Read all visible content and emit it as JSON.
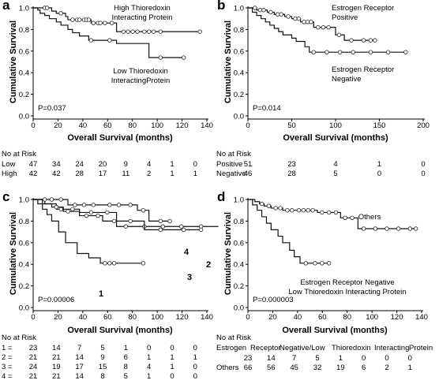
{
  "chart_data": [
    {
      "panel_label": "a",
      "type": "line",
      "xlabel": "Overall Survival (months)",
      "ylabel": "Cumulative Survival",
      "xlim": [
        0,
        150
      ],
      "ylim": [
        0.0,
        1.0
      ],
      "xticks": [
        "0",
        "20",
        "40",
        "60",
        "80",
        "100",
        "120",
        "140"
      ],
      "yticks": [
        "0.0",
        "0.2",
        "0.4",
        "0.6",
        "0.8",
        "1.0"
      ],
      "pvalue": "P=0.037",
      "annotations": [
        "High Thioredoxin Interacting Protein",
        "Low Thioredoxin InteractingProtein"
      ],
      "series": [
        {
          "group": "High",
          "x": [
            0,
            14,
            16,
            20,
            28,
            30,
            50,
            72,
            144
          ],
          "y": [
            1.0,
            1.0,
            0.97,
            0.95,
            0.92,
            0.89,
            0.86,
            0.78,
            0.78
          ],
          "censor_x": [
            10,
            12,
            24,
            34,
            38,
            40,
            44,
            46,
            48,
            52,
            56,
            58,
            62,
            68,
            78,
            82,
            86,
            90,
            96,
            100,
            104,
            110,
            144
          ]
        },
        {
          "group": "Low",
          "x": [
            0,
            4,
            6,
            10,
            14,
            20,
            24,
            30,
            34,
            40,
            48,
            72,
            100,
            130
          ],
          "y": [
            1.0,
            0.98,
            0.95,
            0.93,
            0.9,
            0.87,
            0.84,
            0.8,
            0.77,
            0.74,
            0.7,
            0.67,
            0.54,
            0.54
          ],
          "censor_x": [
            50,
            66,
            110,
            130
          ]
        }
      ],
      "risk": {
        "header": "No at Risk",
        "columns_x": [
          0,
          20,
          40,
          60,
          80,
          100,
          120,
          140
        ],
        "rows": [
          {
            "label": "Low",
            "values": [
              "47",
              "34",
              "24",
              "20",
              "9",
              "4",
              "1",
              "0"
            ]
          },
          {
            "label": "High",
            "values": [
              "42",
              "42",
              "28",
              "17",
              "11",
              "2",
              "1",
              "1"
            ]
          }
        ]
      }
    },
    {
      "panel_label": "b",
      "type": "line",
      "xlabel": "Overall Survival (months)",
      "ylabel": "Cumulative Survival",
      "xlim": [
        0,
        200
      ],
      "ylim": [
        0.0,
        1.0
      ],
      "xticks": [
        "0",
        "50",
        "100",
        "150",
        "200"
      ],
      "yticks": [
        "0.0",
        "0.2",
        "0.4",
        "0.6",
        "0.8",
        "1.0"
      ],
      "pvalue": "P=0.014",
      "annotations": [
        "Estrogen Receptor Positive",
        "Estrogen Receptor Negative"
      ],
      "series": [
        {
          "group": "Positive",
          "x": [
            0,
            10,
            22,
            30,
            42,
            50,
            60,
            75,
            100,
            110,
            125,
            145
          ],
          "y": [
            1.0,
            0.98,
            0.96,
            0.94,
            0.92,
            0.9,
            0.87,
            0.82,
            0.75,
            0.7,
            0.7,
            0.7
          ],
          "censor_x": [
            8,
            14,
            18,
            26,
            34,
            38,
            46,
            54,
            58,
            64,
            68,
            72,
            80,
            86,
            92,
            104,
            118,
            132,
            140,
            145
          ]
        },
        {
          "group": "Negative",
          "x": [
            0,
            5,
            10,
            15,
            20,
            25,
            30,
            35,
            40,
            50,
            55,
            65,
            70,
            180
          ],
          "y": [
            1.0,
            0.96,
            0.93,
            0.9,
            0.87,
            0.84,
            0.81,
            0.78,
            0.75,
            0.72,
            0.69,
            0.64,
            0.59,
            0.59
          ],
          "censor_x": [
            75,
            90,
            105,
            120,
            140,
            160,
            180
          ]
        }
      ],
      "risk": {
        "header": "No at Risk",
        "columns_x": [
          0,
          50,
          100,
          150,
          200
        ],
        "rows": [
          {
            "label": "Positive",
            "values": [
              "51",
              "23",
              "4",
              "1",
              "0"
            ]
          },
          {
            "label": "Negative",
            "values": [
              "46",
              "28",
              "5",
              "0",
              "0"
            ]
          }
        ]
      }
    },
    {
      "panel_label": "c",
      "type": "line",
      "xlabel": "Overall Survival (months)",
      "ylabel": "Cumulative Survival",
      "xlim": [
        0,
        150
      ],
      "ylim": [
        0.0,
        1.0
      ],
      "xticks": [
        "0",
        "20",
        "40",
        "60",
        "80",
        "100",
        "120",
        "140"
      ],
      "yticks": [
        "0.0",
        "0.2",
        "0.4",
        "0.6",
        "0.8",
        "1.0"
      ],
      "pvalue": "P=0.00006",
      "series": [
        {
          "group": "1",
          "x": [
            0,
            4,
            8,
            12,
            16,
            22,
            28,
            38,
            48,
            58,
            95
          ],
          "y": [
            1.0,
            0.96,
            0.91,
            0.86,
            0.8,
            0.7,
            0.6,
            0.5,
            0.46,
            0.41,
            0.41
          ],
          "censor_x": [
            62,
            66,
            70,
            95
          ]
        },
        {
          "group": "2",
          "x": [
            0,
            10,
            20,
            30,
            40,
            72,
            160
          ],
          "y": [
            1.0,
            0.96,
            0.91,
            0.91,
            0.88,
            0.75,
            0.75
          ],
          "censor_x": [
            24,
            34,
            50,
            64,
            80,
            96,
            112,
            128,
            145
          ]
        },
        {
          "group": "3",
          "x": [
            0,
            8,
            16,
            26,
            40,
            60,
            96,
            145
          ],
          "y": [
            1.0,
            0.96,
            0.93,
            0.89,
            0.85,
            0.8,
            0.72,
            0.72
          ],
          "censor_x": [
            20,
            30,
            46,
            56,
            70,
            84,
            110,
            130,
            145
          ]
        },
        {
          "group": "4",
          "x": [
            0,
            30,
            60,
            90,
            100,
            118
          ],
          "y": [
            1.0,
            0.95,
            0.95,
            0.9,
            0.8,
            0.8
          ],
          "censor_x": [
            10,
            16,
            24,
            36,
            44,
            52,
            66,
            74,
            84,
            95,
            110,
            118
          ]
        }
      ],
      "curve_labels": [
        "1",
        "2",
        "3",
        "4"
      ],
      "risk": {
        "header": "No at Risk",
        "columns_x": [
          0,
          20,
          40,
          60,
          80,
          100,
          120,
          140
        ],
        "rows": [
          {
            "label": "1 =",
            "values": [
              "23",
              "14",
              "7",
              "5",
              "1",
              "0",
              "0",
              "0"
            ]
          },
          {
            "label": "2 =",
            "values": [
              "21",
              "21",
              "14",
              "9",
              "6",
              "1",
              "1",
              "1"
            ]
          },
          {
            "label": "3 =",
            "values": [
              "24",
              "19",
              "17",
              "15",
              "8",
              "4",
              "1",
              "0"
            ]
          },
          {
            "label": "4 =",
            "values": [
              "21",
              "21",
              "14",
              "8",
              "5",
              "1",
              "0",
              "0"
            ]
          }
        ]
      }
    },
    {
      "panel_label": "d",
      "type": "line",
      "xlabel": "Overall Survival (months)",
      "ylabel": "Cumulative Survival",
      "xlim": [
        0,
        150
      ],
      "ylim": [
        0.0,
        1.0
      ],
      "xticks": [
        "0",
        "20",
        "40",
        "60",
        "80",
        "100",
        "120",
        "140"
      ],
      "yticks": [
        "0.0",
        "0.2",
        "0.4",
        "0.6",
        "0.8",
        "1.0"
      ],
      "pvalue": "P=0.000003",
      "annotations": [
        "Others",
        "Estrogen Receptor Negative",
        "Low Thioredoxin Interacting Protein"
      ],
      "series": [
        {
          "group": "Others",
          "x": [
            0,
            6,
            10,
            14,
            20,
            30,
            40,
            60,
            80,
            95,
            145
          ],
          "y": [
            1.0,
            0.98,
            0.96,
            0.94,
            0.92,
            0.9,
            0.9,
            0.88,
            0.83,
            0.73,
            0.73
          ],
          "censor_x": [
            12,
            18,
            24,
            28,
            34,
            38,
            44,
            48,
            52,
            56,
            64,
            70,
            76,
            84,
            90,
            100,
            110,
            120,
            130,
            140,
            145
          ]
        },
        {
          "group": "ER Negative / Low TXNIP",
          "x": [
            0,
            4,
            8,
            12,
            16,
            20,
            26,
            30,
            36,
            40,
            45,
            70
          ],
          "y": [
            1.0,
            0.95,
            0.9,
            0.84,
            0.78,
            0.72,
            0.66,
            0.6,
            0.53,
            0.47,
            0.41,
            0.41
          ],
          "censor_x": [
            50,
            58,
            64,
            70
          ]
        }
      ],
      "risk": {
        "header": "No at Risk",
        "columns_x": [
          0,
          20,
          40,
          60,
          80,
          100,
          120,
          140
        ],
        "subheader": [
          "Estrogen",
          "Receptor",
          "Negative/Low",
          "Thioredoxin",
          "Interacting",
          "Protein"
        ],
        "rows": [
          {
            "label": "",
            "values": [
              "23",
              "14",
              "7",
              "5",
              "1",
              "0",
              "0",
              "0"
            ]
          },
          {
            "label": "Others",
            "values": [
              "66",
              "56",
              "45",
              "32",
              "19",
              "6",
              "2",
              "1"
            ]
          }
        ]
      }
    }
  ]
}
